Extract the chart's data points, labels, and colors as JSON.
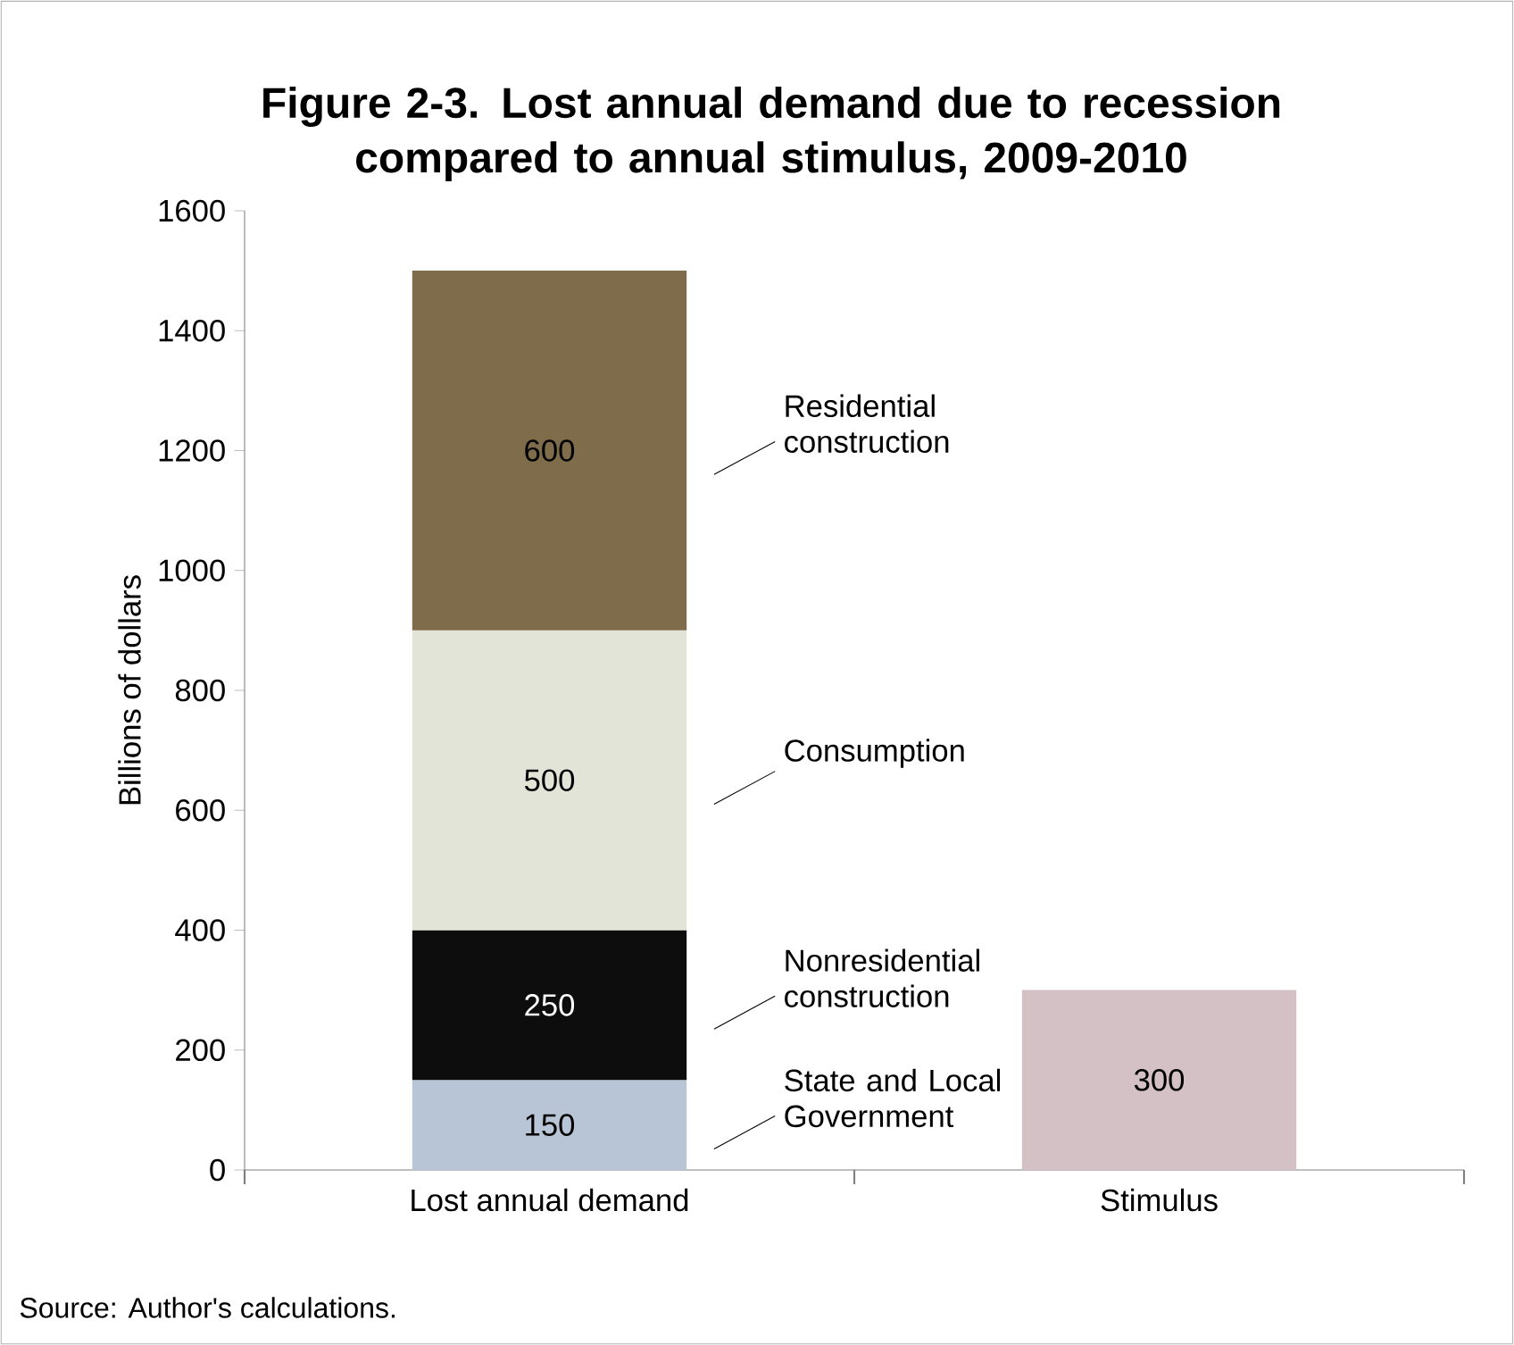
{
  "chart_data": {
    "type": "bar",
    "stacked": true,
    "title": "Figure 2-3. Lost annual demand due to recession compared to annual stimulus, 2009-2010",
    "ylabel": "Billions of dollars",
    "categories": [
      "Lost annual demand",
      "Stimulus"
    ],
    "series": [
      {
        "name": "State and Local Government",
        "color": "#b7c5d6",
        "values": [
          150,
          null
        ]
      },
      {
        "name": "Nonresidential construction",
        "color": "#0d0d0d",
        "values": [
          250,
          null
        ]
      },
      {
        "name": "Consumption",
        "color": "#e1e4d7",
        "values": [
          500,
          null
        ]
      },
      {
        "name": "Residential construction",
        "color": "#7f6c4b",
        "values": [
          600,
          null
        ]
      },
      {
        "color": "#d4c1c5",
        "values": [
          null,
          300
        ]
      }
    ],
    "ylim": [
      0,
      1600
    ],
    "yticks": [
      0,
      200,
      400,
      600,
      800,
      1000,
      1200,
      1400,
      1600
    ],
    "data_labels": true,
    "annotations": [
      "Source: Author's calculations."
    ]
  }
}
